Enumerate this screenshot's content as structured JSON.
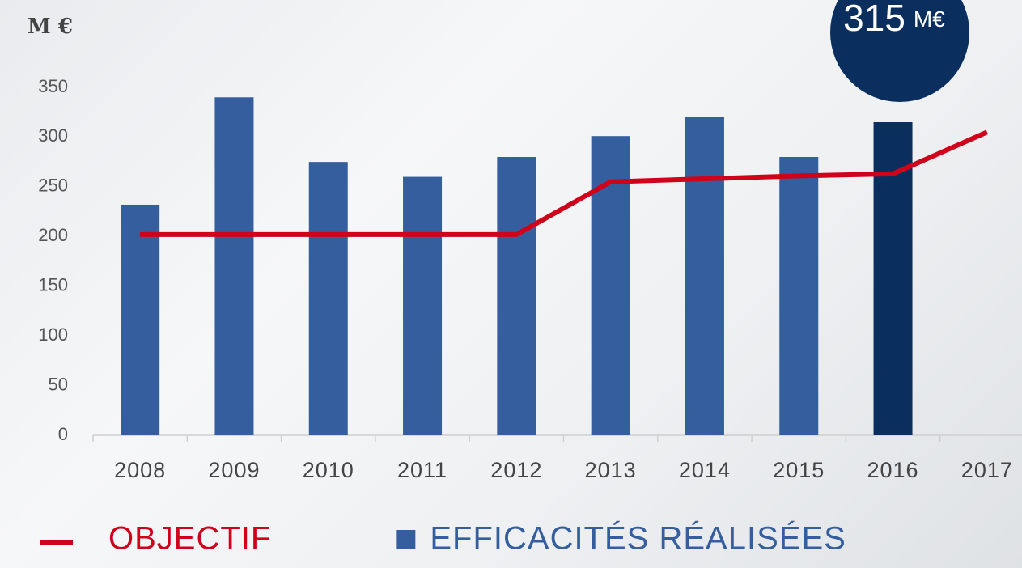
{
  "chart_data": {
    "type": "bar_line",
    "y_label": "M €",
    "annotation": {
      "value": "315",
      "unit": "M€",
      "color": "#0a2f5e"
    },
    "categories": [
      "2008",
      "2009",
      "2010",
      "2011",
      "2012",
      "2013",
      "2014",
      "2015",
      "2016",
      "2017"
    ],
    "series": [
      {
        "name": "OBJECTIF",
        "type": "line",
        "color": "#d0021b",
        "values": [
          202,
          202,
          202,
          202,
          202,
          255,
          258,
          261,
          263,
          305
        ]
      },
      {
        "name": "EFFICACITÉS RÉALISÉES",
        "type": "bar",
        "color": "#355e9e",
        "colors": [
          "#355e9e",
          "#355e9e",
          "#355e9e",
          "#355e9e",
          "#355e9e",
          "#355e9e",
          "#355e9e",
          "#355e9e",
          "#0a2f5e",
          "#355e9e"
        ],
        "values": [
          232,
          340,
          275,
          260,
          280,
          301,
          320,
          280,
          315,
          null
        ]
      }
    ],
    "ylim": [
      0,
      350
    ],
    "yticks": [
      0,
      50,
      100,
      150,
      200,
      250,
      300,
      350
    ]
  }
}
